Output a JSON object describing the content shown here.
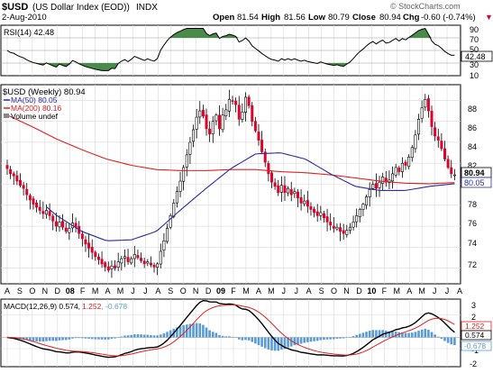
{
  "header": {
    "symbol": "$USD",
    "name": "(US Dollar Index (EOD))",
    "exchange": "INDX",
    "date": "2-Aug-2010",
    "watermark": "© StockCharts.com",
    "open_label": "Open",
    "open": "81.54",
    "high_label": "High",
    "high": "81.56",
    "low_label": "Low",
    "low": "80.79",
    "close_label": "Close",
    "close": "80.94",
    "chg_label": "Chg",
    "chg": "-0.60 (-0.74%)",
    "chg_arrow": "▼"
  },
  "colors": {
    "background": "#ffffff",
    "grid": "#d9d9d9",
    "up_candle": "#ffffff",
    "down_candle": "#e0002a",
    "candle_outline": "#000000",
    "ma50": "#2b2b9e",
    "ma200": "#e02020",
    "macd_line": "#000000",
    "signal_line": "#e02020",
    "histogram": "#5b9bd5",
    "rsi_fill": "#4a8a4a"
  },
  "rsi": {
    "label": "RSI(14) 42.48",
    "value_tag": "42.48",
    "ticks": [
      "90",
      "70",
      "50",
      "30",
      "10"
    ]
  },
  "price": {
    "legend_title": "$USD (Weekly) 80.94",
    "legend_ma50": "MA(50) 80.05",
    "legend_ma200": "MA(200) 80.16",
    "legend_volume": "Volume undef",
    "close_tag": "80.94",
    "ma_tag": "80.05",
    "ticks": [
      "88",
      "86",
      "84",
      "82",
      "80",
      "78",
      "76",
      "74",
      "72"
    ]
  },
  "macd": {
    "label_prefix": "MACD(12,26,9) 0.574,",
    "label_signal": "1.252",
    "label_hist": ", -0.678",
    "tag_signal": "1.252",
    "tag_macd": "0.574",
    "tag_hist": "-0.678",
    "ticks": [
      "3",
      "2",
      "1",
      "0",
      "-1",
      "-2"
    ]
  },
  "x_axis": {
    "labels": [
      "A",
      "S",
      "O",
      "N",
      "D",
      "08",
      "F",
      "M",
      "A",
      "M",
      "J",
      "J",
      "A",
      "S",
      "O",
      "N",
      "D",
      "09",
      "F",
      "M",
      "A",
      "M",
      "J",
      "J",
      "A",
      "S",
      "O",
      "N",
      "D",
      "10",
      "F",
      "M",
      "A",
      "M",
      "J",
      "J",
      "A"
    ],
    "bold_labels": [
      "08",
      "09",
      "10"
    ]
  },
  "chart_data": {
    "type": "candlestick",
    "title": "$USD (US Dollar Index (EOD)) INDX",
    "period": "Weekly",
    "x_range": [
      "2007-08",
      "2010-08"
    ],
    "price_ylim": [
      70.5,
      89.5
    ],
    "price_weekly_closes_approx": [
      81.5,
      81.0,
      80.8,
      80.3,
      79.9,
      79.6,
      79.0,
      78.5,
      78.1,
      77.8,
      77.5,
      77.2,
      77.5,
      77.0,
      76.5,
      76.0,
      76.4,
      75.9,
      75.5,
      75.8,
      76.3,
      75.9,
      75.3,
      74.8,
      74.3,
      73.9,
      73.5,
      73.1,
      72.8,
      72.4,
      72.1,
      71.8,
      72.2,
      72.0,
      72.6,
      72.9,
      73.1,
      72.6,
      72.9,
      73.3,
      73.0,
      72.7,
      72.4,
      72.6,
      72.3,
      72.1,
      72.4,
      73.6,
      74.6,
      75.8,
      77.0,
      78.2,
      79.3,
      80.3,
      81.6,
      82.8,
      84.0,
      85.2,
      86.4,
      87.0,
      86.5,
      85.3,
      84.8,
      86.0,
      86.6,
      85.3,
      86.6,
      87.1,
      88.1,
      87.9,
      87.6,
      86.2,
      86.9,
      88.3,
      87.5,
      86.0,
      85.1,
      84.2,
      83.1,
      82.1,
      81.0,
      80.2,
      79.8,
      79.2,
      79.9,
      79.2,
      79.6,
      79.0,
      79.3,
      78.7,
      78.2,
      78.4,
      77.9,
      77.6,
      77.3,
      77.0,
      77.3,
      76.8,
      76.4,
      76.1,
      75.8,
      75.9,
      75.5,
      75.3,
      75.6,
      75.9,
      76.4,
      77.0,
      77.6,
      78.1,
      78.8,
      79.5,
      80.0,
      79.6,
      80.2,
      80.7,
      80.2,
      80.4,
      81.0,
      81.6,
      81.2,
      82.0,
      81.8,
      82.6,
      83.5,
      84.7,
      86.2,
      87.3,
      88.1,
      87.0,
      85.5,
      84.6,
      84.2,
      83.4,
      82.4,
      81.6,
      81.0,
      80.9
    ],
    "ma50_weekly_approx": [
      80.2,
      79.0,
      77.0,
      75.5,
      74.6,
      74.7,
      75.5,
      77.6,
      79.6,
      81.5,
      82.9,
      83.0,
      82.4,
      81.0,
      79.8,
      79.4,
      79.4,
      79.8,
      80.05
    ],
    "ma200_weekly_approx": [
      86.6,
      85.5,
      84.3,
      83.3,
      82.4,
      81.8,
      81.4,
      81.3,
      81.3,
      81.4,
      81.4,
      81.2,
      81.1,
      80.9,
      80.6,
      80.3,
      80.1,
      80.05,
      80.16
    ],
    "current": {
      "close": 80.94,
      "ma50": 80.05,
      "ma200": 80.16
    },
    "rsi": {
      "period": 14,
      "value": 42.48,
      "ylim": [
        10,
        90
      ],
      "levels": [
        30,
        70
      ]
    },
    "macd": {
      "params": [
        12,
        26,
        9
      ],
      "macd": 0.574,
      "signal": 1.252,
      "histogram": -0.678,
      "ylim": [
        -2.6,
        3.4
      ]
    }
  }
}
